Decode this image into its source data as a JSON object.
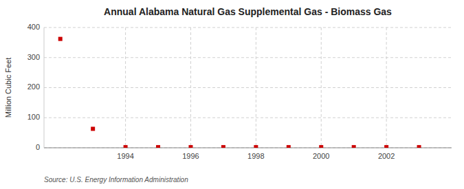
{
  "chart_data": {
    "type": "scatter",
    "title": "Annual Alabama Natural Gas Supplemental Gas - Biomass Gas",
    "ylabel": "Million Cubic Feet",
    "source": "Source: U.S. Energy Information Administration",
    "x": [
      1992,
      1993,
      1994,
      1995,
      1996,
      1997,
      1998,
      1999,
      2000,
      2001,
      2002,
      2003
    ],
    "values": [
      362,
      63,
      2,
      2,
      2,
      2,
      2,
      2,
      2,
      2,
      2,
      2
    ],
    "color": "#cc0000",
    "marker": "square",
    "xlim": [
      1991.5,
      2004.0
    ],
    "ylim": [
      0,
      400
    ],
    "xticks": [
      1994,
      1996,
      1998,
      2000,
      2002
    ],
    "yticks": [
      0,
      100,
      200,
      300,
      400
    ],
    "grid": true
  }
}
